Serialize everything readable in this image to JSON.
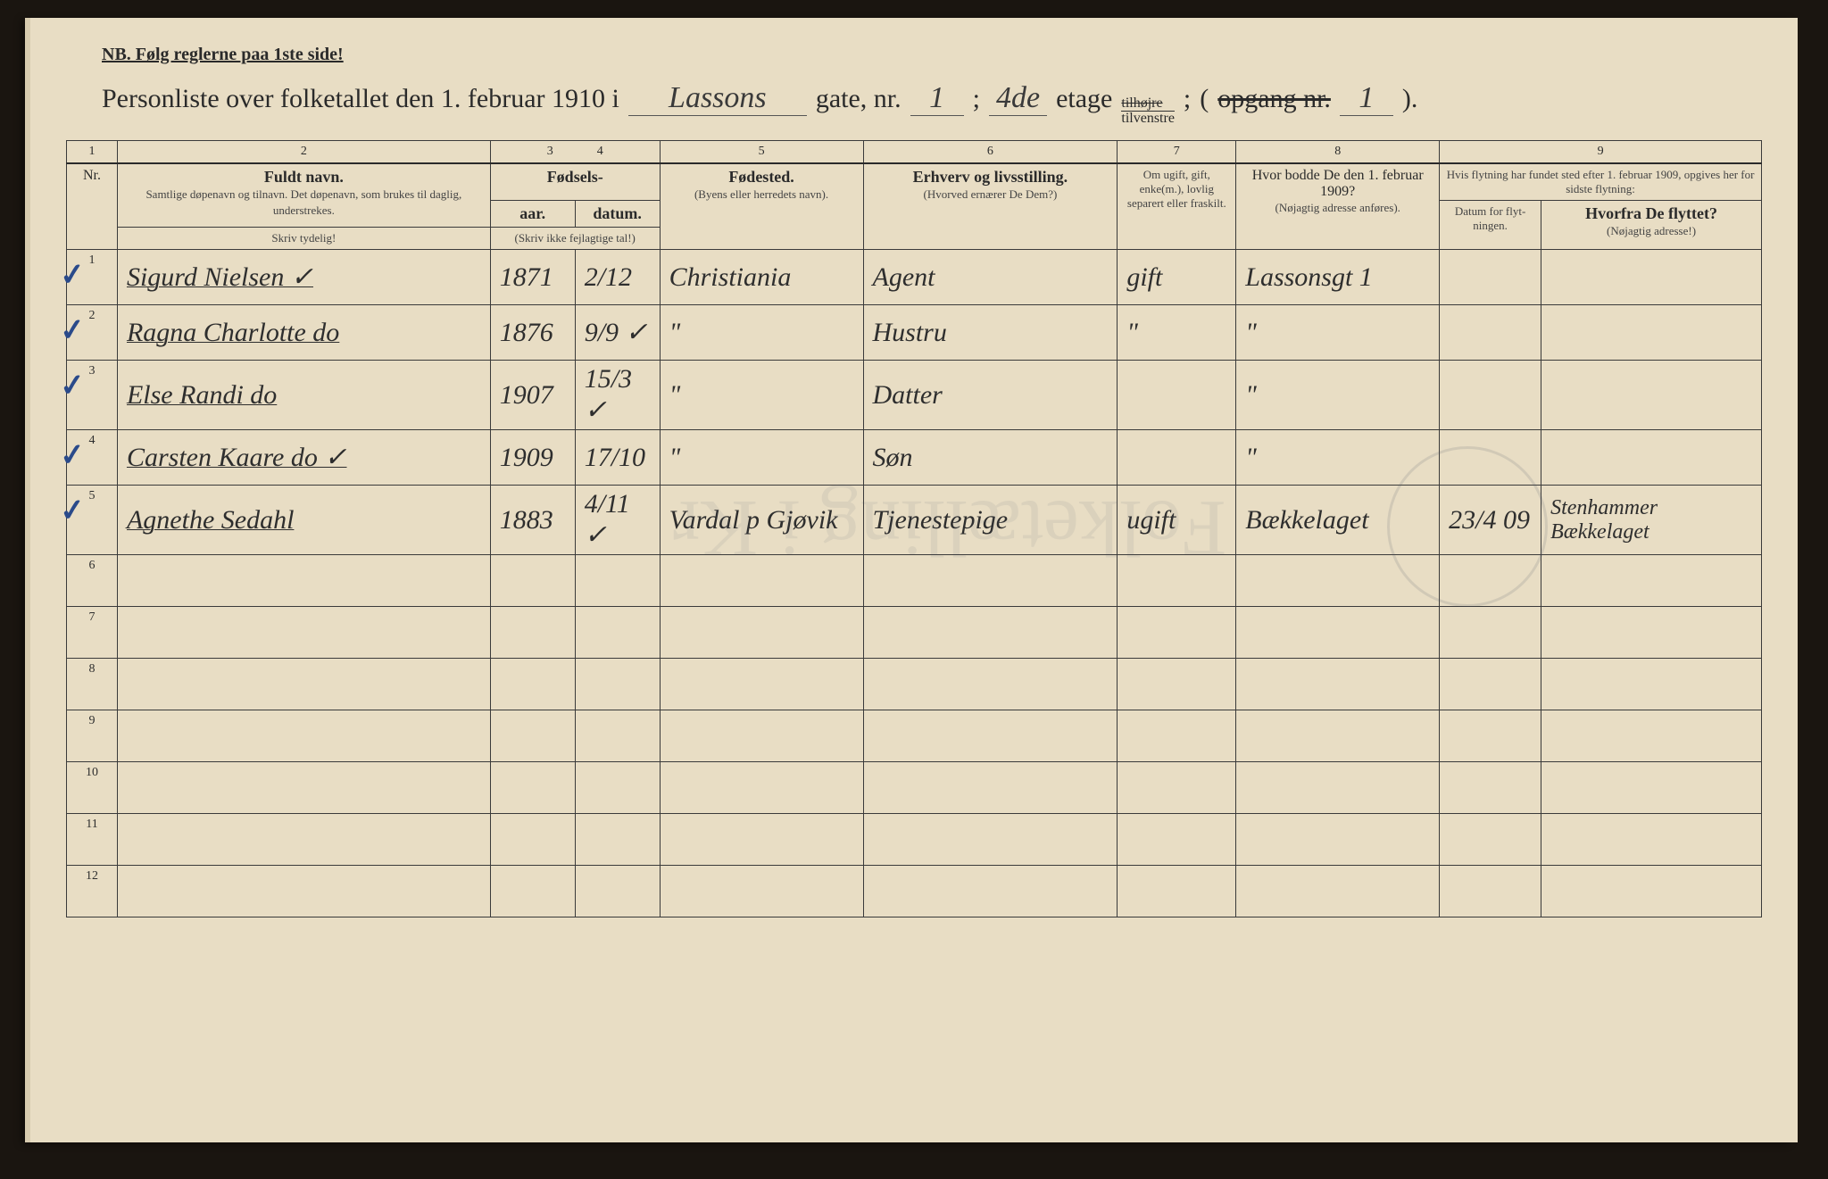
{
  "nb_text": "NB. Følg reglerne paa 1ste side!",
  "title": {
    "prefix": "Personliste over folketallet den 1. februar 1910 i",
    "street": "Lassons",
    "gate_label": "gate, nr.",
    "house_nr": "1",
    "semicolon": ";",
    "floor": "4de",
    "etage_label": "etage",
    "side_top": "tilhøjre",
    "side_bot": "tilvenstre",
    "semicolon2": ";",
    "paren_open": "(",
    "opgang_label": "opgang nr.",
    "opgang_nr": "1",
    "paren_close": ")."
  },
  "columns": {
    "nums": [
      "1",
      "2",
      "3",
      "4",
      "5",
      "6",
      "7",
      "8",
      "9"
    ],
    "nr": "Nr.",
    "name_title": "Fuldt navn.",
    "name_sub": "Samtlige døpenavn og tilnavn. Det døpenavn, som brukes til daglig, understrekes.",
    "birth_group": "Fødsels-",
    "birth_year": "aar.",
    "birth_date": "datum.",
    "birth_sub": "(Skriv ikke fejlagtige tal!)",
    "birthplace": "Fødested.",
    "birthplace_sub": "(Byens eller herre­dets navn).",
    "occupation": "Erhverv og livsstilling.",
    "occupation_sub": "(Hvorved ernærer De Dem?)",
    "marital": "Om ugift, gift, enke(m.), lovlig separert eller fraskilt.",
    "addr1909": "Hvor bodde De den 1. februar 1909?",
    "addr1909_sub": "(Nøjagtig adresse anføres).",
    "move_group": "Hvis flytning har fundet sted efter 1. februar 1909, opgives her for sidste flytning:",
    "move_date": "Datum for flyt­ningen.",
    "move_from": "Hvorfra De flyttet?",
    "move_from_sub": "(Nøjagtig adresse!)",
    "skriv_tydelig": "Skriv tydelig!"
  },
  "rows": [
    {
      "n": "1",
      "check": true,
      "name": "Sigurd Nielsen ✓",
      "year": "1871",
      "date": "2/12",
      "birthplace": "Christiania",
      "occupation": "Agent",
      "marital": "gift",
      "addr": "Lassonsgt 1",
      "movedate": "",
      "movefrom": ""
    },
    {
      "n": "2",
      "check": true,
      "name": "Ragna Charlotte do",
      "year": "1876",
      "date": "9/9 ✓",
      "birthplace": "\"",
      "occupation": "Hustru",
      "marital": "\"",
      "addr": "\"",
      "movedate": "",
      "movefrom": ""
    },
    {
      "n": "3",
      "check": true,
      "name": "Else Randi do",
      "year": "1907",
      "date": "15/3 ✓",
      "birthplace": "\"",
      "occupation": "Datter",
      "marital": "",
      "addr": "\"",
      "movedate": "",
      "movefrom": ""
    },
    {
      "n": "4",
      "check": true,
      "name": "Carsten Kaare do ✓",
      "year": "1909",
      "date": "17/10",
      "birthplace": "\"",
      "occupation": "Søn",
      "marital": "",
      "addr": "\"",
      "movedate": "",
      "movefrom": ""
    },
    {
      "n": "5",
      "check": true,
      "name": "Agnethe Sedahl",
      "year": "1883",
      "date": "4/11 ✓",
      "birthplace": "Vardal p Gjøvik",
      "occupation": "Tjenestepige",
      "marital": "ugift",
      "addr": "Bækkelaget",
      "movedate": "23/4 09",
      "movefrom": "Stenhammer Bækkelaget"
    }
  ],
  "empty_rows": [
    "6",
    "7",
    "8",
    "9",
    "10",
    "11",
    "12"
  ],
  "colors": {
    "paper": "#e8ddc4",
    "ink": "#2a2a2a",
    "handwriting": "#2e2e2e",
    "check_blue": "#2a4a8a",
    "border": "#3a3a3a",
    "background": "#1a1510"
  }
}
